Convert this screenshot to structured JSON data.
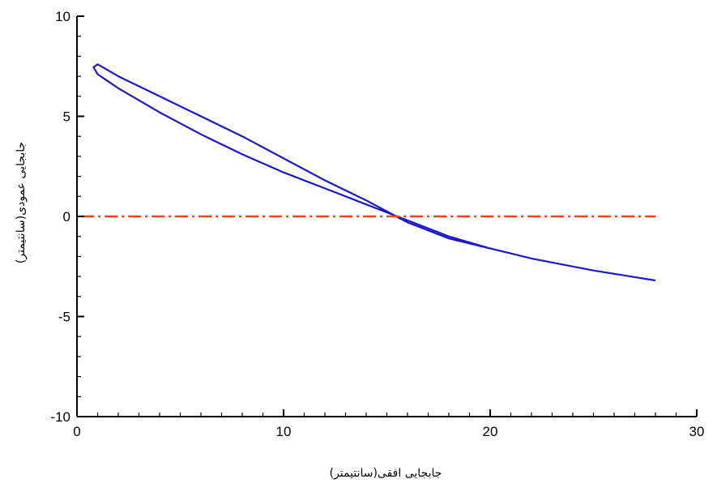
{
  "chart_data": {
    "type": "line",
    "xlabel": "جابجایی افقی(سانتیمتر)",
    "ylabel": "جابجایی عمودی(سانتیمتر)",
    "xlim": [
      0,
      30
    ],
    "ylim": [
      -10,
      10
    ],
    "x_ticks": [
      0,
      10,
      20,
      30
    ],
    "y_ticks": [
      -10,
      -5,
      0,
      5,
      10
    ],
    "x_tick_labels": [
      "0",
      "10",
      "20",
      "30"
    ],
    "y_tick_labels": [
      "-10",
      "-5",
      "0",
      "5",
      "10"
    ],
    "grid": false,
    "legend": "none",
    "series": [
      {
        "color": "#1a1acc",
        "style": "solid",
        "x": [
          28.0,
          25.0,
          22.0,
          20.0,
          18.0,
          16.0,
          15.0,
          14.0,
          12.0,
          10.0,
          8.0,
          6.0,
          4.0,
          2.0,
          1.0,
          0.8,
          1.0,
          2.0,
          4.0,
          6.0,
          8.0,
          10.0,
          12.0,
          14.0,
          16.0,
          18.0,
          20.0,
          22.0,
          25.0,
          28.0
        ],
        "y": [
          -3.2,
          -2.7,
          -2.1,
          -1.6,
          -1.0,
          -0.2,
          0.2,
          0.6,
          1.4,
          2.2,
          3.1,
          4.1,
          5.2,
          6.4,
          7.1,
          7.45,
          7.6,
          7.0,
          6.0,
          5.0,
          4.0,
          2.9,
          1.8,
          0.8,
          -0.3,
          -1.1,
          -1.6,
          -2.1,
          -2.7,
          -3.2
        ]
      },
      {
        "color": "#ee4411",
        "style": "dashdot",
        "x": [
          0.2,
          28.0
        ],
        "y": [
          0.0,
          0.0
        ]
      }
    ]
  }
}
